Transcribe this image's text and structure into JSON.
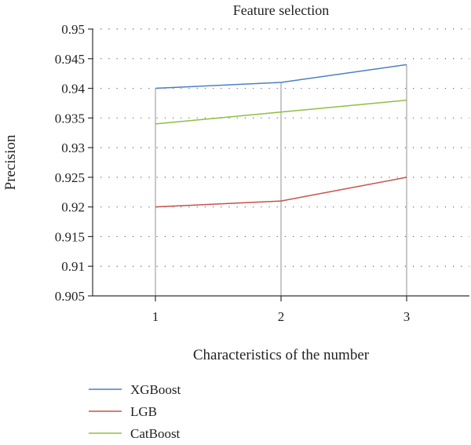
{
  "chart_data": {
    "type": "line",
    "title": "Feature selection",
    "xlabel": "Characteristics of the number",
    "ylabel": "Precision",
    "x": [
      1,
      2,
      3
    ],
    "xticks": [
      "1",
      "2",
      "3"
    ],
    "xlim": [
      0.5,
      3.5
    ],
    "ylim": [
      0.905,
      0.95
    ],
    "yticks": [
      "0.905",
      "0.91",
      "0.915",
      "0.92",
      "0.925",
      "0.93",
      "0.935",
      "0.94",
      "0.945",
      "0.95"
    ],
    "grid": "dotted",
    "legend_position": "bottom-left",
    "series": [
      {
        "name": "XGBoost",
        "values": [
          0.94,
          0.941,
          0.944
        ],
        "color": "#4a7fc1"
      },
      {
        "name": "LGB",
        "values": [
          0.92,
          0.921,
          0.925
        ],
        "color": "#c8504a"
      },
      {
        "name": "CatBoost",
        "values": [
          0.934,
          0.936,
          0.938
        ],
        "color": "#8fbf3f"
      }
    ]
  }
}
